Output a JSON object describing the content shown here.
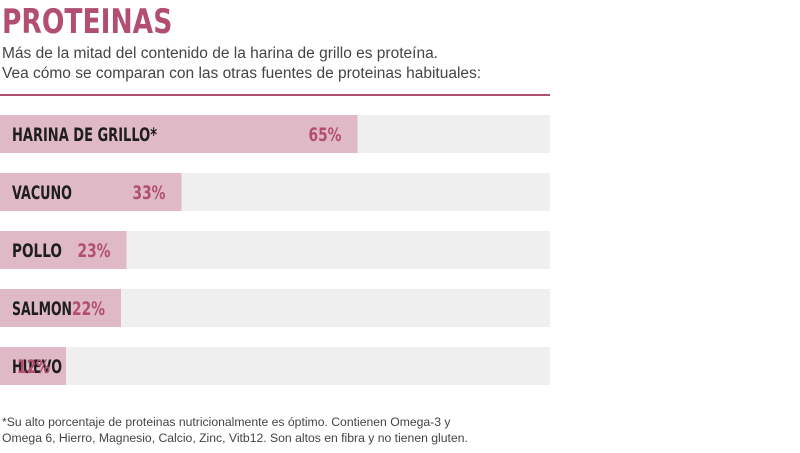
{
  "header": {
    "title": "PROTEINAS",
    "subtitle_line1": "Más de la mitad del contenido de la harina de grillo es proteína.",
    "subtitle_line2": "Vea cómo se comparan con las otras fuentes de proteinas habituales:"
  },
  "footnote": {
    "line1": "*Su alto porcentaje de proteinas nutricionalmente es óptimo. Contienen Omega-3 y",
    "line2": "Omega 6, Hierro, Magnesio, Calcio, Zinc, Vitb12. Son altos en fibra y no tienen gluten."
  },
  "colors": {
    "accent": "#b14e72",
    "bar_fill": "#dfbac6",
    "track": "#efefef"
  },
  "chart_data": {
    "type": "bar",
    "orientation": "horizontal",
    "title": "PROTEINAS",
    "categories": [
      "HARINA DE GRILLO*",
      "VACUNO",
      "POLLO",
      "SALMON",
      "HUEVO"
    ],
    "values": [
      65,
      33,
      23,
      22,
      12
    ],
    "value_labels": [
      "65%",
      "33%",
      "23%",
      "22%",
      "12%"
    ],
    "unit": "%",
    "xlim": [
      0,
      100
    ],
    "grid": false,
    "legend": "none"
  }
}
